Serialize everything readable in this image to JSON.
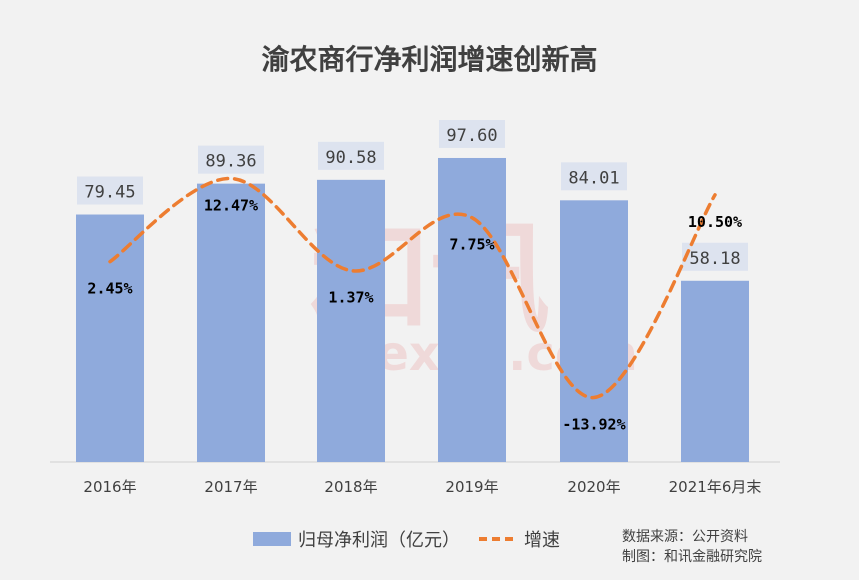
{
  "chart_data": {
    "type": "bar+line",
    "title": "渝农商行净利润增速创新高",
    "categories": [
      "2016年",
      "2017年",
      "2018年",
      "2019年",
      "2020年",
      "2021年6月末"
    ],
    "series": [
      {
        "name": "归母净利润（亿元）",
        "type": "bar",
        "color": "#8faadc",
        "values": [
          79.45,
          89.36,
          90.58,
          97.6,
          84.01,
          58.18
        ],
        "labels": [
          "79.45",
          "89.36",
          "90.58",
          "97.60",
          "84.01",
          "58.18"
        ]
      },
      {
        "name": "增速",
        "type": "line",
        "style": "dashed",
        "color": "#ed7d31",
        "values": [
          2.45,
          12.47,
          1.37,
          7.75,
          -13.92,
          10.5
        ],
        "labels": [
          "2.45%",
          "12.47%",
          "1.37%",
          "7.75%",
          "-13.92%",
          "10.50%"
        ]
      }
    ],
    "legend": "bottom",
    "grid": false
  },
  "notes": {
    "source": "数据来源：公开资料",
    "made_by": "制图：和讯金融研究院"
  },
  "watermark": "和讯 hexun.com"
}
